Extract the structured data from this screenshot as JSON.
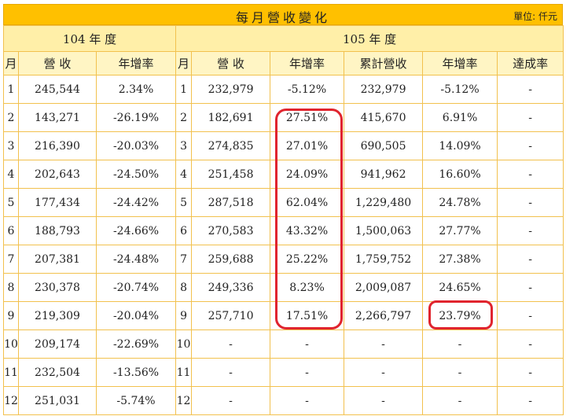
{
  "title": "每月營收變化",
  "unit_label": "單位: 仟元",
  "groups": {
    "y104": "104 年 度",
    "y105": "105 年 度"
  },
  "headers": {
    "month": "月",
    "revenue": "營 收",
    "yoy": "年增率",
    "cumulative": "累計營收",
    "cum_yoy": "年增率",
    "achievement": "達成率"
  },
  "rows": [
    {
      "m104": "1",
      "rev104": "245,544",
      "yoy104": "2.34%",
      "m105": "1",
      "rev105": "232,979",
      "yoy105": "-5.12%",
      "cum105": "232,979",
      "cumyoy105": "-5.12%",
      "ach": "-"
    },
    {
      "m104": "2",
      "rev104": "143,271",
      "yoy104": "-26.19%",
      "m105": "2",
      "rev105": "182,691",
      "yoy105": "27.51%",
      "cum105": "415,670",
      "cumyoy105": "6.91%",
      "ach": "-"
    },
    {
      "m104": "3",
      "rev104": "216,390",
      "yoy104": "-20.03%",
      "m105": "3",
      "rev105": "274,835",
      "yoy105": "27.01%",
      "cum105": "690,505",
      "cumyoy105": "14.09%",
      "ach": "-"
    },
    {
      "m104": "4",
      "rev104": "202,643",
      "yoy104": "-24.50%",
      "m105": "4",
      "rev105": "251,458",
      "yoy105": "24.09%",
      "cum105": "941,962",
      "cumyoy105": "16.60%",
      "ach": "-"
    },
    {
      "m104": "5",
      "rev104": "177,434",
      "yoy104": "-24.42%",
      "m105": "5",
      "rev105": "287,518",
      "yoy105": "62.04%",
      "cum105": "1,229,480",
      "cumyoy105": "24.78%",
      "ach": "-"
    },
    {
      "m104": "6",
      "rev104": "188,793",
      "yoy104": "-24.66%",
      "m105": "6",
      "rev105": "270,583",
      "yoy105": "43.32%",
      "cum105": "1,500,063",
      "cumyoy105": "27.77%",
      "ach": "-"
    },
    {
      "m104": "7",
      "rev104": "207,381",
      "yoy104": "-24.48%",
      "m105": "7",
      "rev105": "259,688",
      "yoy105": "25.22%",
      "cum105": "1,759,752",
      "cumyoy105": "27.38%",
      "ach": "-"
    },
    {
      "m104": "8",
      "rev104": "230,378",
      "yoy104": "-20.74%",
      "m105": "8",
      "rev105": "249,336",
      "yoy105": "8.23%",
      "cum105": "2,009,087",
      "cumyoy105": "24.65%",
      "ach": "-"
    },
    {
      "m104": "9",
      "rev104": "219,309",
      "yoy104": "-20.04%",
      "m105": "9",
      "rev105": "257,710",
      "yoy105": "17.51%",
      "cum105": "2,266,797",
      "cumyoy105": "23.79%",
      "ach": "-"
    },
    {
      "m104": "10",
      "rev104": "209,174",
      "yoy104": "-22.69%",
      "m105": "10",
      "rev105": "-",
      "yoy105": "-",
      "cum105": "-",
      "cumyoy105": "-",
      "ach": "-"
    },
    {
      "m104": "11",
      "rev104": "232,504",
      "yoy104": "-13.56%",
      "m105": "11",
      "rev105": "-",
      "yoy105": "-",
      "cum105": "-",
      "cumyoy105": "-",
      "ach": "-"
    },
    {
      "m104": "12",
      "rev104": "251,031",
      "yoy104": "-5.74%",
      "m105": "12",
      "rev105": "-",
      "yoy105": "-",
      "cum105": "-",
      "cumyoy105": "-",
      "ach": "-"
    }
  ],
  "colors": {
    "title_bg": "#ffc000",
    "header_bg": "#fff5c4",
    "border": "#f2c14e",
    "annotation": "#e0242e"
  }
}
